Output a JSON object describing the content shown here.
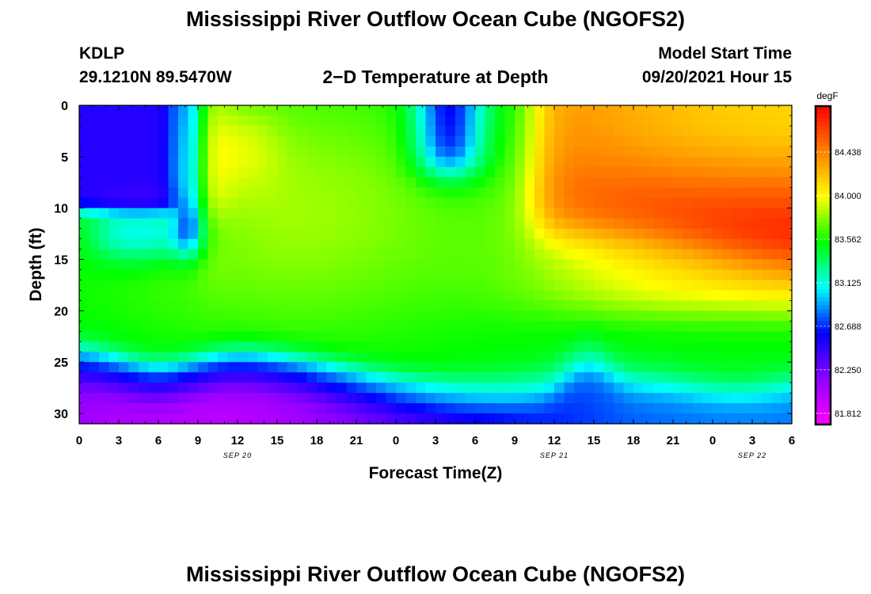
{
  "header": {
    "title": "Mississippi River Outflow Ocean Cube (NGOFS2)",
    "station_id": "KDLP",
    "station_coords": "29.1210N  89.5470W",
    "subtitle": "2−D Temperature at Depth",
    "model_start_label": "Model Start Time",
    "model_start_value": "09/20/2021 Hour 15"
  },
  "footer": {
    "title": "Mississippi River Outflow Ocean Cube (NGOFS2)"
  },
  "chart_data": {
    "type": "heatmap",
    "title": "2−D Temperature at Depth",
    "xlabel": "Forecast Time(Z)",
    "ylabel": "Depth (ft)",
    "y_reversed": true,
    "ylim": [
      0,
      31
    ],
    "y_ticks": [
      0,
      5,
      10,
      15,
      20,
      25,
      30
    ],
    "x_range_hours": [
      0,
      54
    ],
    "x_tick_labels": [
      "0",
      "3",
      "6",
      "9",
      "12",
      "15",
      "18",
      "21",
      "0",
      "3",
      "6",
      "9",
      "12",
      "15",
      "18",
      "21",
      "0",
      "3",
      "6"
    ],
    "date_labels": [
      {
        "label": "SEP 20",
        "hour": 12
      },
      {
        "label": "SEP 21",
        "hour": 36
      },
      {
        "label": "SEP 22",
        "hour": 51
      }
    ],
    "colorbar": {
      "unit": "degF",
      "ticks": [
        "84.438",
        "84.000",
        "83.562",
        "83.125",
        "82.688",
        "82.250",
        "81.812"
      ],
      "range": [
        81.7,
        84.9
      ]
    },
    "colors": {
      "magenta": "#ff00ff",
      "purple": "#8f00ff",
      "blue": "#0000ff",
      "cyan": "#00ffff",
      "green": "#00ff00",
      "yellow": "#ffff00",
      "orange": "#ff8000",
      "red": "#ff0000"
    }
  }
}
